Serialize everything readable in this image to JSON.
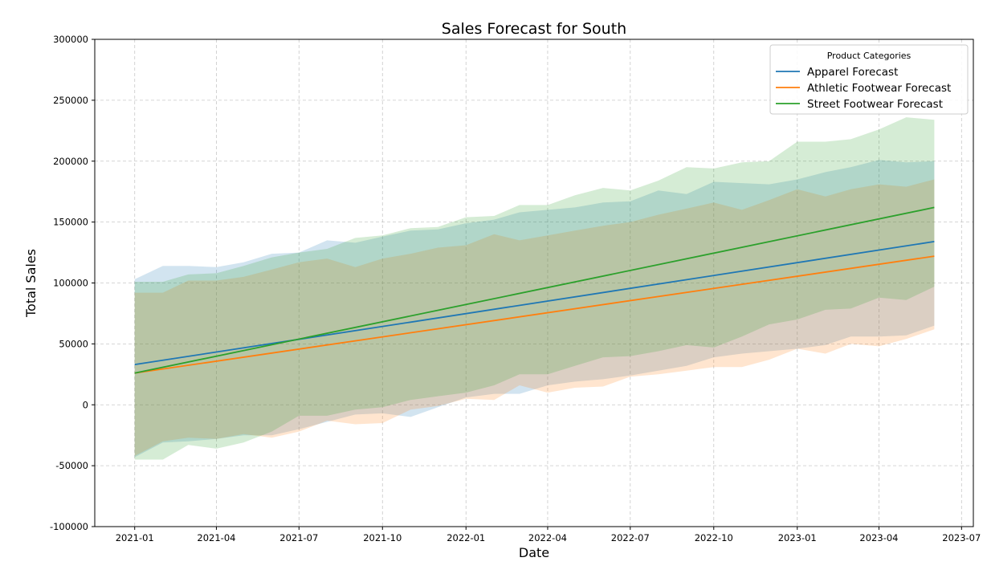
{
  "chart_data": {
    "type": "line",
    "title": "Sales Forecast for South",
    "xlabel": "Date",
    "ylabel": "Total Sales",
    "x": [
      "2021-01",
      "2021-02",
      "2021-03",
      "2021-04",
      "2021-05",
      "2021-06",
      "2021-07",
      "2021-08",
      "2021-09",
      "2021-10",
      "2021-11",
      "2021-12",
      "2022-01",
      "2022-02",
      "2022-03",
      "2022-04",
      "2022-05",
      "2022-06",
      "2022-07",
      "2022-08",
      "2022-09",
      "2022-10",
      "2022-11",
      "2022-12",
      "2023-01",
      "2023-02",
      "2023-03",
      "2023-04",
      "2023-05",
      "2023-06"
    ],
    "x_ticks": [
      "2021-01",
      "2021-04",
      "2021-07",
      "2021-10",
      "2022-01",
      "2022-04",
      "2022-07",
      "2022-10",
      "2023-01",
      "2023-04",
      "2023-07"
    ],
    "x_range": [
      "2020-11-18",
      "2023-07-14"
    ],
    "ylim": [
      -100000,
      300000
    ],
    "y_ticks": [
      -100000,
      -50000,
      0,
      50000,
      100000,
      150000,
      200000,
      250000,
      300000
    ],
    "grid": true,
    "legend": {
      "title": "Product Categories",
      "placement": "top-right"
    },
    "series": [
      {
        "name": "Apparel Forecast",
        "color": "#1f77b4",
        "start": 33000,
        "end": 134000,
        "upper": [
          103000,
          114000,
          114000,
          113000,
          117000,
          124000,
          125000,
          135000,
          133000,
          138000,
          143000,
          144000,
          149000,
          152000,
          158000,
          160000,
          162000,
          166000,
          167000,
          176000,
          173000,
          183000,
          182000,
          181000,
          185000,
          191000,
          195000,
          201000,
          199000,
          200000
        ],
        "lower": [
          -43000,
          -31000,
          -30000,
          -28000,
          -25000,
          -25000,
          -20000,
          -14000,
          -8000,
          -7000,
          -10000,
          -2000,
          6000,
          9000,
          9000,
          16000,
          19000,
          21000,
          24000,
          28000,
          32000,
          39000,
          42000,
          44000,
          46000,
          49000,
          56000,
          56000,
          57000,
          65000
        ]
      },
      {
        "name": "Athletic Footwear Forecast",
        "color": "#ff7f0e",
        "start": 26000,
        "end": 122000,
        "upper": [
          92000,
          92000,
          102000,
          102000,
          105000,
          111000,
          117000,
          120000,
          113000,
          120000,
          124000,
          129000,
          131000,
          140000,
          135000,
          139000,
          143000,
          147000,
          150000,
          156000,
          161000,
          166000,
          160000,
          168000,
          177000,
          171000,
          177000,
          181000,
          179000,
          185000
        ],
        "lower": [
          -42000,
          -30000,
          -27000,
          -28000,
          -24000,
          -27000,
          -22000,
          -13000,
          -16000,
          -15000,
          -4000,
          -1000,
          5000,
          4000,
          16000,
          10000,
          14000,
          15000,
          23000,
          25000,
          28000,
          31000,
          31000,
          37000,
          46000,
          42000,
          50000,
          48000,
          54000,
          62000
        ]
      },
      {
        "name": "Street Footwear Forecast",
        "color": "#2ca02c",
        "start": 26000,
        "end": 162000,
        "upper": [
          101000,
          101000,
          107000,
          108000,
          114000,
          121000,
          125000,
          128000,
          137000,
          139000,
          145000,
          146000,
          154000,
          155000,
          164000,
          164000,
          172000,
          178000,
          176000,
          184000,
          195000,
          194000,
          199000,
          200000,
          216000,
          216000,
          218000,
          226000,
          236000,
          234000
        ],
        "lower": [
          -45000,
          -45000,
          -33000,
          -36000,
          -31000,
          -22000,
          -9000,
          -9000,
          -4000,
          -2000,
          4000,
          7000,
          10000,
          16000,
          25000,
          25000,
          32000,
          39000,
          40000,
          44000,
          49000,
          47000,
          56000,
          66000,
          70000,
          78000,
          79000,
          88000,
          86000,
          97000
        ]
      }
    ]
  }
}
